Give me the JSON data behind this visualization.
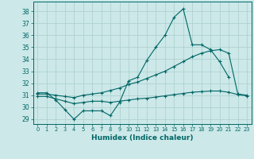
{
  "xlabel": "Humidex (Indice chaleur)",
  "bg_color": "#cce8e8",
  "grid_color": "#aacece",
  "line_color": "#006666",
  "xlim": [
    -0.5,
    23.5
  ],
  "ylim": [
    28.6,
    38.8
  ],
  "yticks": [
    29,
    30,
    31,
    32,
    33,
    34,
    35,
    36,
    37,
    38
  ],
  "xticks": [
    0,
    1,
    2,
    3,
    4,
    5,
    6,
    7,
    8,
    9,
    10,
    11,
    12,
    13,
    14,
    15,
    16,
    17,
    18,
    19,
    20,
    21,
    22,
    23
  ],
  "s1_x": [
    0,
    1,
    2,
    3,
    4,
    5,
    6,
    7,
    8,
    9,
    10,
    11,
    12,
    13,
    14,
    15,
    16,
    17,
    18,
    19,
    20,
    21
  ],
  "s1_y": [
    31.2,
    31.2,
    30.6,
    29.8,
    29.0,
    29.7,
    29.7,
    29.7,
    29.3,
    30.4,
    32.2,
    32.5,
    33.9,
    35.0,
    36.0,
    37.5,
    38.2,
    35.2,
    35.2,
    34.8,
    33.8,
    32.5
  ],
  "s2_x": [
    0,
    1,
    2,
    3,
    4,
    5,
    6,
    7,
    8,
    9,
    10,
    11,
    12,
    13,
    14,
    15,
    16,
    17,
    18,
    19,
    20,
    21,
    22,
    23
  ],
  "s2_y": [
    31.1,
    31.1,
    31.0,
    30.9,
    30.8,
    31.0,
    31.1,
    31.2,
    31.4,
    31.6,
    31.9,
    32.1,
    32.4,
    32.7,
    33.0,
    33.4,
    33.8,
    34.2,
    34.5,
    34.7,
    34.8,
    34.5,
    31.1,
    31.0
  ],
  "s3_x": [
    0,
    1,
    2,
    3,
    4,
    5,
    6,
    7,
    8,
    9,
    10,
    11,
    12,
    13,
    14,
    15,
    16,
    17,
    18,
    19,
    20,
    21,
    22,
    23
  ],
  "s3_y": [
    30.9,
    30.9,
    30.7,
    30.5,
    30.3,
    30.4,
    30.5,
    30.5,
    30.4,
    30.5,
    30.6,
    30.7,
    30.75,
    30.85,
    30.95,
    31.05,
    31.15,
    31.25,
    31.3,
    31.35,
    31.35,
    31.25,
    31.05,
    30.95
  ]
}
